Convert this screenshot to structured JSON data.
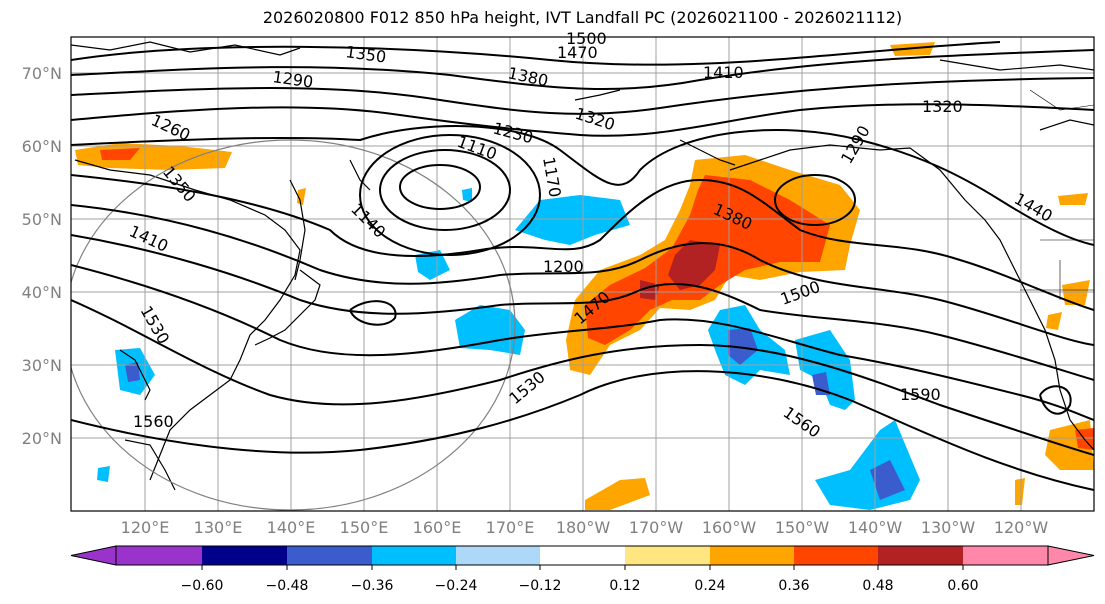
{
  "title": "2026020800 F012 850 hPa height, IVT Landfall PC (2026021100 - 2026021112)",
  "lat_labels": [
    "70°N",
    "60°N",
    "50°N",
    "40°N",
    "30°N",
    "20°N"
  ],
  "lon_labels": [
    "120°E",
    "130°E",
    "140°E",
    "150°E",
    "160°E",
    "170°E",
    "180°W",
    "170°W",
    "160°W",
    "150°W",
    "140°W",
    "130°W",
    "120°W"
  ],
  "colorbar": {
    "ticks": [
      "−0.60",
      "−0.48",
      "−0.36",
      "−0.24",
      "−0.12",
      "0.12",
      "0.24",
      "0.36",
      "0.48",
      "0.60"
    ],
    "colors": [
      "#9933cc",
      "#00008b",
      "#3a5ccc",
      "#00bfff",
      "#add8f7",
      "#ffffff",
      "#ffe680",
      "#ffa500",
      "#ff4500",
      "#b22222",
      "#ff88aa"
    ]
  },
  "contour_labels": [
    {
      "text": "1350"
    },
    {
      "text": "1470"
    },
    {
      "text": "1500"
    },
    {
      "text": "1290"
    },
    {
      "text": "1380"
    },
    {
      "text": "1410"
    },
    {
      "text": "1260"
    },
    {
      "text": "1230"
    },
    {
      "text": "1320"
    },
    {
      "text": "1320"
    },
    {
      "text": "1110"
    },
    {
      "text": "1290"
    },
    {
      "text": "1350"
    },
    {
      "text": "1170"
    },
    {
      "text": "1140"
    },
    {
      "text": "1380"
    },
    {
      "text": "1410"
    },
    {
      "text": "1440"
    },
    {
      "text": "1200"
    },
    {
      "text": "1500"
    },
    {
      "text": "1470"
    },
    {
      "text": "1530"
    },
    {
      "text": "1530"
    },
    {
      "text": "1590"
    },
    {
      "text": "1560"
    },
    {
      "text": "1560"
    }
  ]
}
